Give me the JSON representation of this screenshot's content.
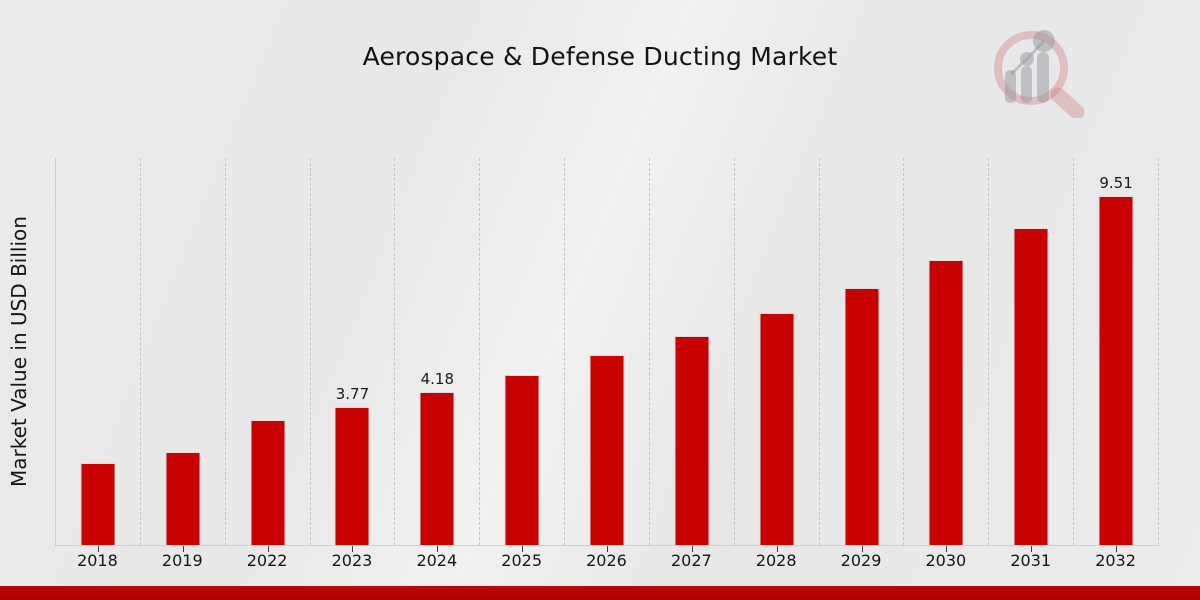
{
  "header": {
    "title": "Aerospace & Defense Ducting Market"
  },
  "chart_data": {
    "type": "bar",
    "title": "Aerospace & Defense Ducting Market",
    "xlabel": "",
    "ylabel": "Market Value in USD Billion",
    "categories": [
      "2018",
      "2019",
      "2022",
      "2023",
      "2024",
      "2025",
      "2026",
      "2027",
      "2028",
      "2029",
      "2030",
      "2031",
      "2032"
    ],
    "values": [
      2.24,
      2.54,
      3.41,
      3.77,
      4.18,
      4.63,
      5.18,
      5.7,
      6.32,
      7.0,
      7.77,
      8.64,
      9.51
    ],
    "visible_data_labels": [
      {
        "category": "2023",
        "text": "3.77"
      },
      {
        "category": "2024",
        "text": "4.18"
      },
      {
        "category": "2032",
        "text": "9.51"
      }
    ],
    "ylim": [
      0,
      10.55
    ],
    "grid": "vertical dashed separators between categories, no horizontal gridlines, no y tick labels",
    "legend": "none",
    "bar_color": "#c80202"
  },
  "decor": {
    "bottom_band_color": "#b40404",
    "logo": "magnifier-bar-chart-watermark",
    "logo_ring_color": "#cd8181",
    "logo_bar_color": "#9b9ba2"
  }
}
